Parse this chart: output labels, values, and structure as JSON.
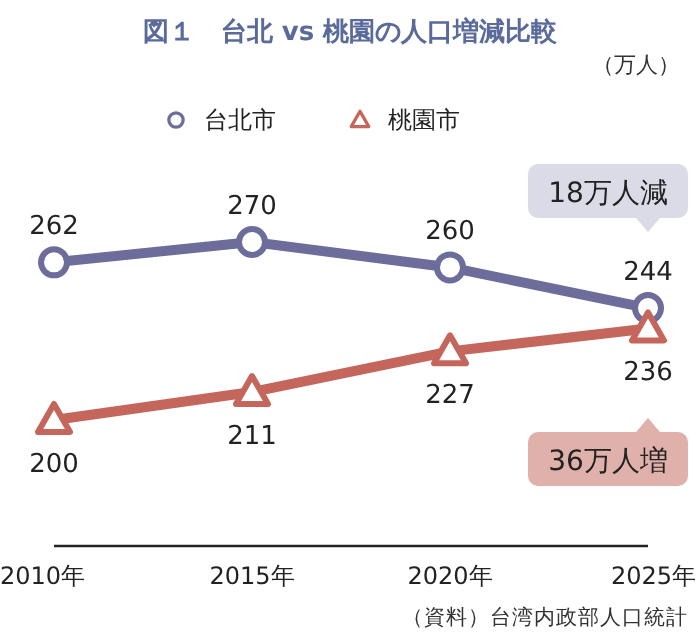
{
  "chart_data": {
    "type": "line",
    "title": "図１　台北 vs 桃園の人口増減比較",
    "categories": [
      "2010年",
      "2015年",
      "2020年",
      "2025年"
    ],
    "series": [
      {
        "name": "台北市",
        "color": "#6d6d9b",
        "marker": "circle",
        "values": [
          262,
          270,
          260,
          244
        ]
      },
      {
        "name": "桃園市",
        "color": "#c5665c",
        "marker": "triangle",
        "values": [
          200,
          211,
          227,
          236
        ]
      }
    ],
    "data_labels": true,
    "legend": "top",
    "grid": false,
    "annotations": [
      "（万人）",
      "18万人減",
      "36万人増",
      "（資料）台湾内政部人口統計"
    ]
  }
}
